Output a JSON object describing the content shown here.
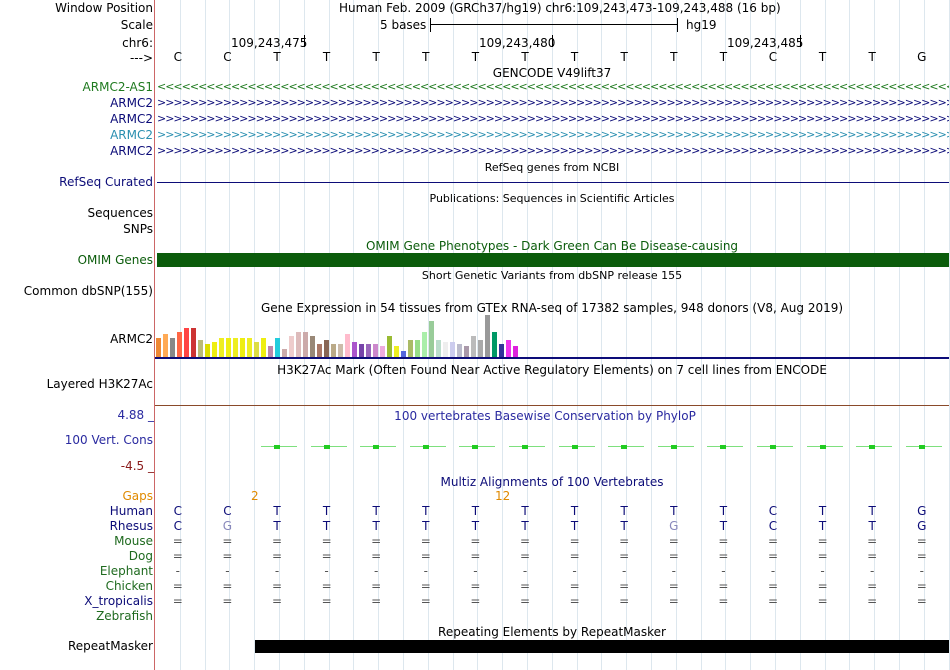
{
  "header": {
    "window_position_label": "Window Position",
    "window_position_value": "Human Feb. 2009 (GRCh37/hg19)   chr6:109,243,473-109,243,488 (16 bp)",
    "scale_label": "Scale",
    "scale_value": "5 bases",
    "scale_db": "hg19",
    "chr_label": "chr6:",
    "chr_ticks": [
      "109,243,475",
      "109,243,480",
      "109,243,485"
    ],
    "strand_label": "--->",
    "sequence": [
      "C",
      "C",
      "T",
      "T",
      "T",
      "T",
      "T",
      "T",
      "T",
      "T",
      "T",
      "T",
      "C",
      "T",
      "T",
      "G"
    ]
  },
  "tracks": {
    "gencode": {
      "title": "GENCODE V49lift37",
      "genes": [
        {
          "label": "ARMC2-AS1",
          "color": "#1f7a1f",
          "direction": "<"
        },
        {
          "label": "ARMC2",
          "color": "#0c0c78",
          "direction": ">"
        },
        {
          "label": "ARMC2",
          "color": "#0c0c78",
          "direction": ">"
        },
        {
          "label": "ARMC2",
          "color": "#2a8fb0",
          "direction": ">"
        },
        {
          "label": "ARMC2",
          "color": "#0c0c78",
          "direction": ">"
        }
      ]
    },
    "refseq": {
      "title": "RefSeq genes from NCBI",
      "label": "RefSeq Curated"
    },
    "publications": {
      "title": "Publications: Sequences in Scientific Articles",
      "label": "Sequences"
    },
    "snps": {
      "label": "SNPs"
    },
    "omim": {
      "title": "OMIM Gene Phenotypes - Dark Green Can Be Disease-causing",
      "label": "OMIM Genes",
      "color": "#0b5c0b"
    },
    "dbsnp": {
      "title": "Short Genetic Variants from dbSNP release 155",
      "label": "Common dbSNP(155)"
    },
    "gtex": {
      "title": "Gene Expression in 54 tissues from GTEx RNA-seq of 17382 samples, 948 donors (V8, Aug 2019)",
      "label": "ARMC2",
      "levels": [
        0.45,
        0.55,
        0.45,
        0.6,
        0.7,
        0.7,
        0.4,
        0.3,
        0.35,
        0.45,
        0.45,
        0.45,
        0.45,
        0.45,
        0.35,
        0.45,
        0.25,
        0.45,
        0.2,
        0.5,
        0.6,
        0.6,
        0.5,
        0.3,
        0.4,
        0.3,
        0.3,
        0.55,
        0.35,
        0.3,
        0.3,
        0.3,
        0.25,
        0.5,
        0.25,
        0.15,
        0.4,
        0.4,
        0.6,
        0.85,
        0.4,
        0.35,
        0.35,
        0.3,
        0.25,
        0.5,
        0.4,
        1.0,
        0.6,
        0.3,
        0.4,
        0.25
      ],
      "colors": [
        "#ee8833",
        "#ffaa55",
        "#888888",
        "#ff6644",
        "#ff4444",
        "#cc3333",
        "#bbbb77",
        "#dddd00",
        "#eeee11",
        "#eeee22",
        "#eeee11",
        "#eeee22",
        "#eeee11",
        "#eeee22",
        "#dddd44",
        "#eeee11",
        "#bb88aa",
        "#22ccdd",
        "#ccaaaa",
        "#eecccc",
        "#ddbbbb",
        "#ccaaaa",
        "#998877",
        "#aa7766",
        "#886655",
        "#bbaa88",
        "#ccbbaa",
        "#ffbbcc",
        "#aa55cc",
        "#7744aa",
        "#9966bb",
        "#cc88cc",
        "#eeaadd",
        "#99bb33",
        "#eeee22",
        "#5566dd",
        "#aabb66",
        "#99dd88",
        "#aaeeaa",
        "#99cc99",
        "#bbddcc",
        "#eeeeee",
        "#ccccee",
        "#bbbbcc",
        "#aa99aa",
        "#bbbbbb",
        "#aaaaaa",
        "#999999",
        "#009966",
        "#333399",
        "#ee33ee",
        "#dd22dd"
      ]
    },
    "h3k27ac": {
      "title": "H3K27Ac Mark (Often Found Near Active Regulatory Elements) on 7 cell lines from ENCODE",
      "label": "Layered H3K27Ac"
    },
    "phylop": {
      "title": "100 vertebrates Basewise Conservation by PhyloP",
      "label": "100 Vert. Cons",
      "max_label": "4.88 _",
      "min_label": "-4.5 _"
    },
    "multiz": {
      "title": "Multiz Alignments of 100 Vertebrates",
      "gaps_label": "Gaps",
      "gap_counts": [
        "2",
        "12"
      ],
      "species": [
        {
          "name": "Human",
          "row": [
            "C",
            "C",
            "T",
            "T",
            "T",
            "T",
            "T",
            "T",
            "T",
            "T",
            "T",
            "T",
            "C",
            "T",
            "T",
            "G"
          ]
        },
        {
          "name": "Rhesus",
          "row": [
            "C",
            "G",
            "T",
            "T",
            "T",
            "T",
            "T",
            "T",
            "T",
            "T",
            "G",
            "T",
            "C",
            "T",
            "T",
            "G"
          ]
        },
        {
          "name": "Mouse",
          "row": [
            "=",
            "=",
            "=",
            "=",
            "=",
            "=",
            "=",
            "=",
            "=",
            "=",
            "=",
            "=",
            "=",
            "=",
            "=",
            "="
          ]
        },
        {
          "name": "Dog",
          "row": [
            "=",
            "=",
            "=",
            "=",
            "=",
            "=",
            "=",
            "=",
            "=",
            "=",
            "=",
            "=",
            "=",
            "=",
            "=",
            "="
          ]
        },
        {
          "name": "Elephant",
          "row": [
            "-",
            "-",
            "-",
            "-",
            "-",
            "-",
            "-",
            "-",
            "-",
            "-",
            "-",
            "-",
            "-",
            "-",
            "-",
            "-"
          ]
        },
        {
          "name": "Chicken",
          "row": [
            "=",
            "=",
            "=",
            "=",
            "=",
            "=",
            "=",
            "=",
            "=",
            "=",
            "=",
            "=",
            "=",
            "=",
            "=",
            "="
          ]
        },
        {
          "name": "X_tropicalis",
          "row": [
            "=",
            "=",
            "=",
            "=",
            "=",
            "=",
            "=",
            "=",
            "=",
            "=",
            "=",
            "=",
            "=",
            "=",
            "=",
            "="
          ]
        },
        {
          "name": "Zebrafish",
          "row": []
        }
      ]
    },
    "repeatmasker": {
      "title": "Repeating Elements by RepeatMasker",
      "label": "RepeatMasker"
    }
  }
}
